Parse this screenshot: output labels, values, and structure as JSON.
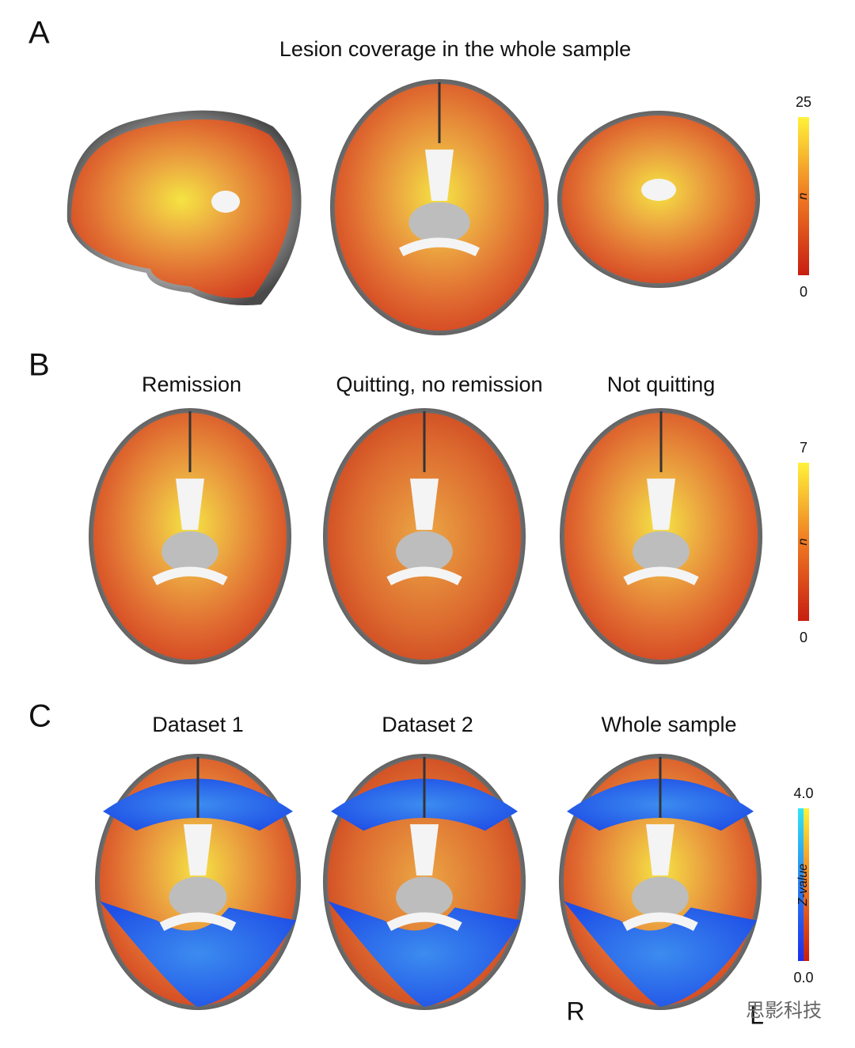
{
  "figure": {
    "panels": [
      {
        "label": "A",
        "title": "Lesion coverage in the whole sample",
        "colorbar": {
          "label": "n",
          "lim": [
            0,
            25
          ],
          "ticks": [
            0,
            25
          ]
        }
      },
      {
        "label": "B",
        "subtitles": [
          "Remission",
          "Quitting, no remission",
          "Not quitting"
        ],
        "colorbar": {
          "label": "n",
          "lim": [
            0,
            7
          ],
          "ticks": [
            0,
            7
          ]
        }
      },
      {
        "label": "C",
        "subtitles": [
          "Dataset 1",
          "Dataset 2",
          "Whole sample"
        ],
        "colorbar": {
          "label": "Z-value",
          "lim": [
            0,
            4
          ],
          "ticks": [
            {
              "value": 0,
              "label": "0.0"
            },
            {
              "value": 4,
              "label": "4.0"
            }
          ]
        }
      }
    ],
    "orientation": [
      "R",
      "L"
    ],
    "watermark": "思影科技"
  }
}
